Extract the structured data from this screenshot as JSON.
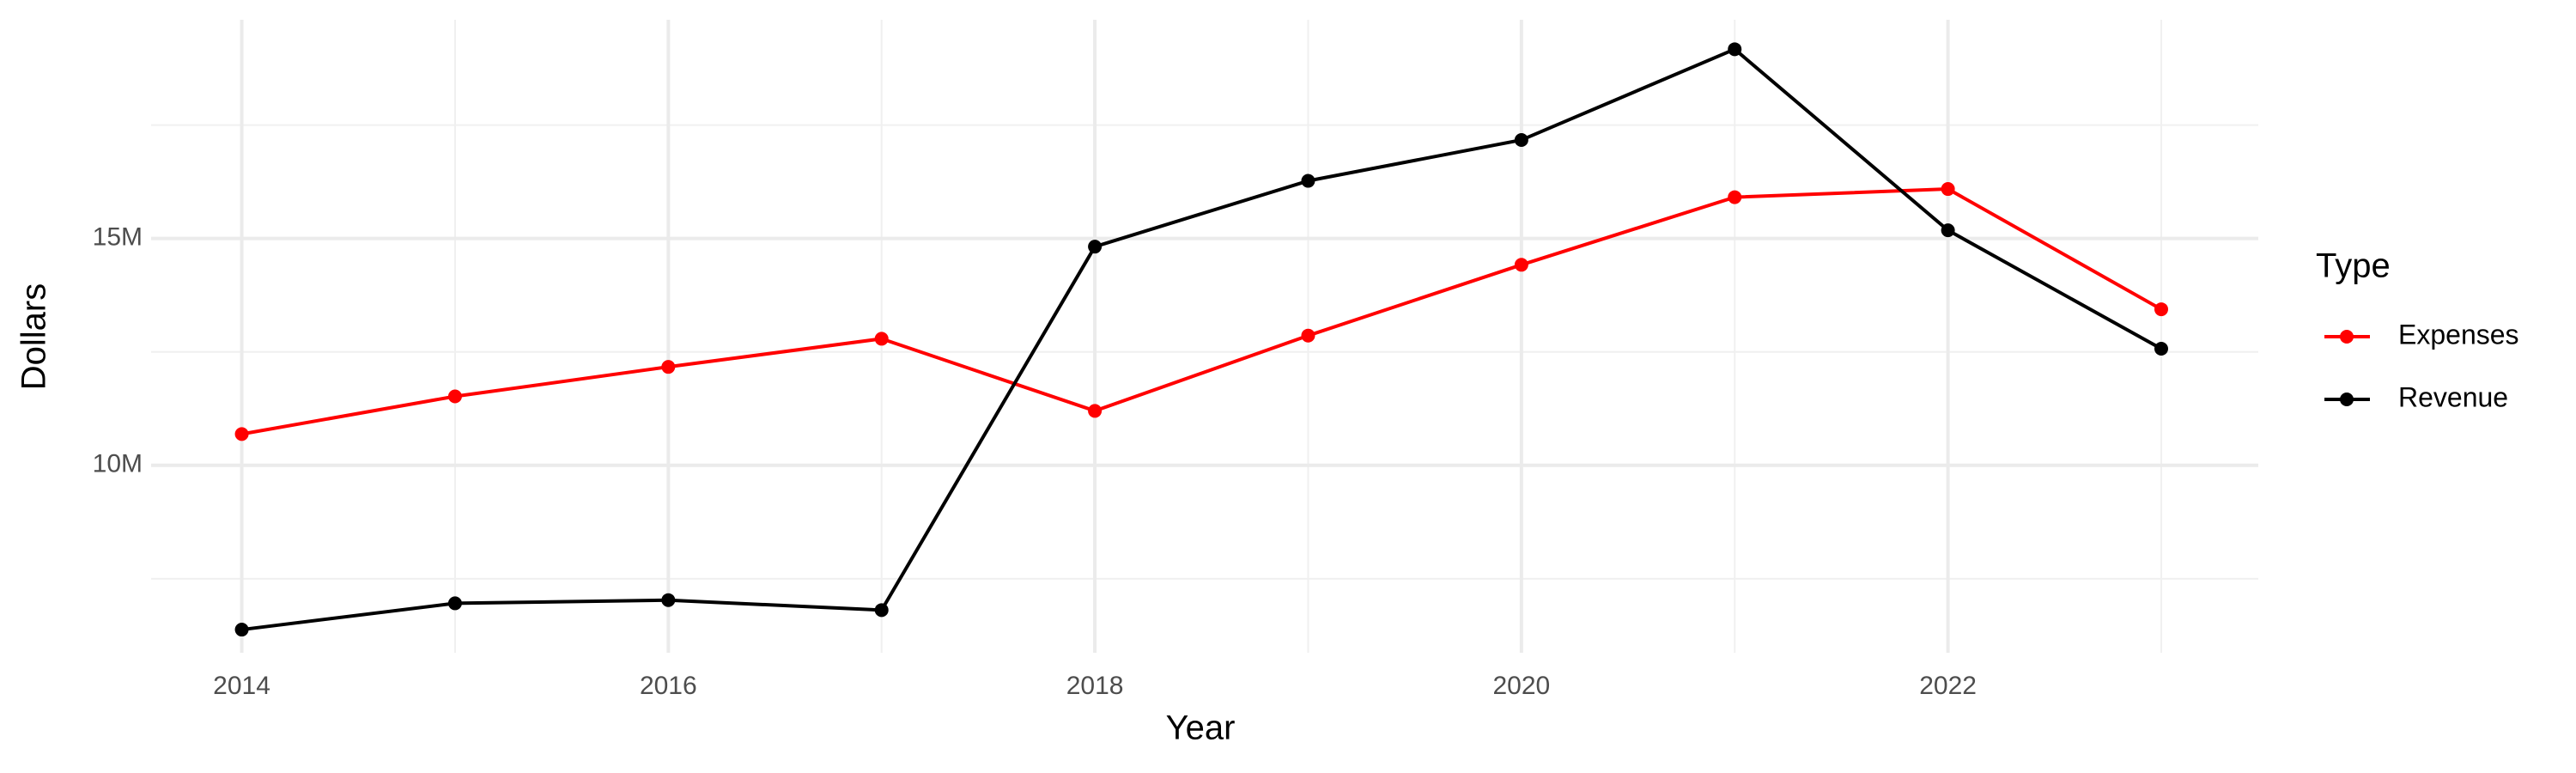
{
  "chart_data": {
    "type": "line",
    "x_label": "Year",
    "y_label": "Dollars",
    "legend_title": "Type",
    "x": [
      2014,
      2015,
      2016,
      2017,
      2018,
      2019,
      2020,
      2021,
      2022,
      2023
    ],
    "series": [
      {
        "name": "Expenses",
        "color": "#ff0000",
        "values": [
          10690000,
          11520000,
          12170000,
          12790000,
          11200000,
          12860000,
          14420000,
          15910000,
          16090000,
          13440000
        ]
      },
      {
        "name": "Revenue",
        "color": "#000000",
        "values": [
          6380000,
          6960000,
          7030000,
          6810000,
          14820000,
          16270000,
          17170000,
          19170000,
          15180000,
          12570000
        ]
      }
    ],
    "xlim": [
      2013.575,
      2023.455
    ],
    "xticks": [
      2014,
      2016,
      2018,
      2020,
      2022
    ],
    "x_minor_gridlines": [
      2015,
      2017,
      2019,
      2021,
      2023
    ],
    "ylim": [
      5870000,
      19820000
    ],
    "yticks": [
      {
        "value": 10000000,
        "label": "10M"
      },
      {
        "value": 15000000,
        "label": "15M"
      }
    ],
    "y_minor_gridlines": [
      7500000,
      12500000,
      17500000
    ],
    "grid": true,
    "legend_position": "right"
  }
}
